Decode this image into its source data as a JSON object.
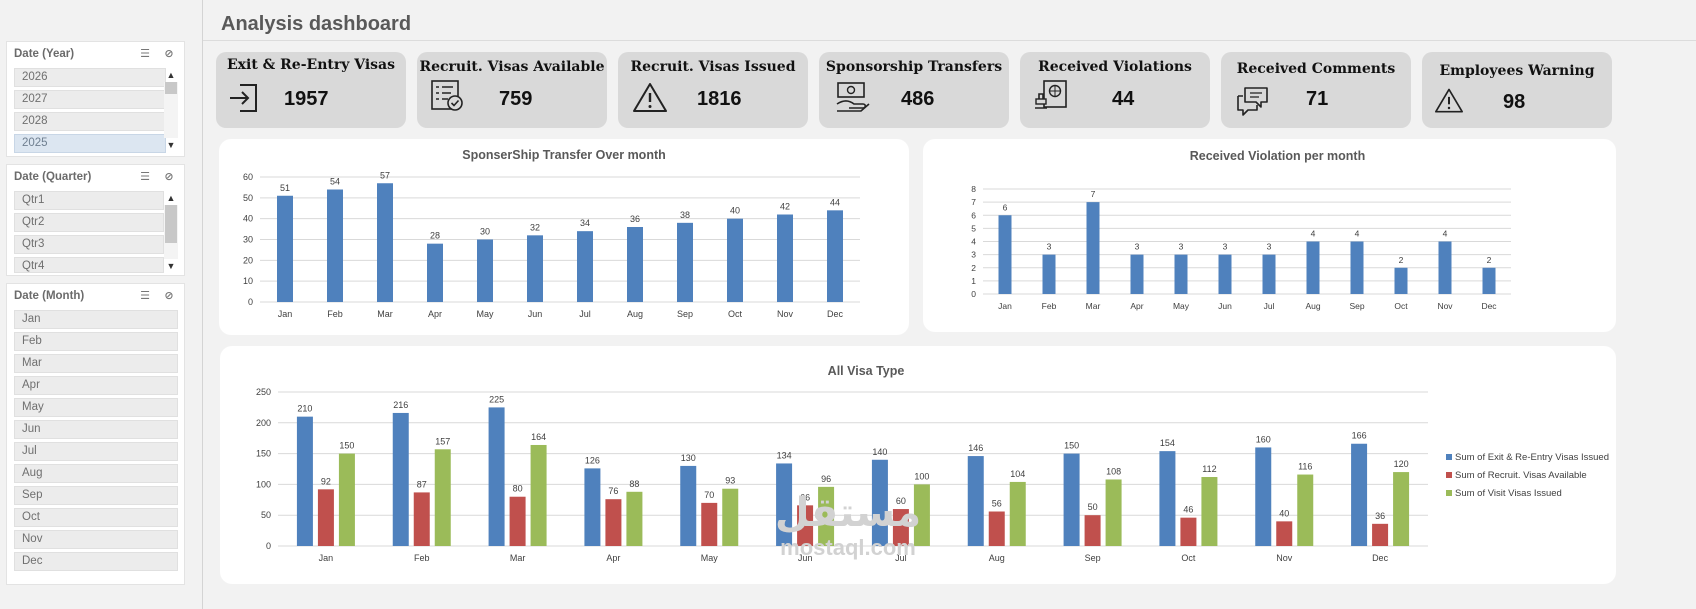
{
  "page": {
    "title": "Analysis dashboard"
  },
  "slicers": {
    "year": {
      "title": "Date (Year)",
      "items": [
        "2026",
        "2027",
        "2028",
        "2025"
      ],
      "selected": "2025"
    },
    "quarter": {
      "title": "Date (Quarter)",
      "items": [
        "Qtr1",
        "Qtr2",
        "Qtr3",
        "Qtr4"
      ]
    },
    "month": {
      "title": "Date (Month)",
      "items": [
        "Jan",
        "Feb",
        "Mar",
        "Apr",
        "May",
        "Jun",
        "Jul",
        "Aug",
        "Sep",
        "Oct",
        "Nov",
        "Dec"
      ]
    },
    "icons": {
      "multi_select": "multi-select-icon",
      "clear_filter": "clear-filter-icon"
    }
  },
  "kpis": [
    {
      "title": "Exit & Re-Entry Visas",
      "value": "1957",
      "icon": "exit-door-icon"
    },
    {
      "title": "Recruit. Visas Available",
      "value": "759",
      "icon": "checklist-icon"
    },
    {
      "title": "Recruit. Visas Issued",
      "value": "1816",
      "icon": "warning-icon"
    },
    {
      "title": "Sponsorship Transfers",
      "value": "486",
      "icon": "money-hand-icon"
    },
    {
      "title": "Received Violations",
      "value": "44",
      "icon": "passport-stamp-icon"
    },
    {
      "title": "Received Comments",
      "value": "71",
      "icon": "chat-bubbles-icon"
    },
    {
      "title": "Employees Warning",
      "value": "98",
      "icon": "warning-icon"
    }
  ],
  "chart_data": [
    {
      "type": "bar",
      "title": "SponserShip Transfer Over month",
      "categories": [
        "Jan",
        "Feb",
        "Mar",
        "Apr",
        "May",
        "Jun",
        "Jul",
        "Aug",
        "Sep",
        "Oct",
        "Nov",
        "Dec"
      ],
      "values": [
        51,
        54,
        57,
        28,
        30,
        32,
        34,
        36,
        38,
        40,
        42,
        44
      ],
      "ylim": [
        0,
        60
      ],
      "yticks": [
        0,
        10,
        20,
        30,
        40,
        50,
        60
      ],
      "grid": true,
      "color": "#4f81bd"
    },
    {
      "type": "bar",
      "title": "Received Violation per month",
      "categories": [
        "Jan",
        "Feb",
        "Mar",
        "Apr",
        "May",
        "Jun",
        "Jul",
        "Aug",
        "Sep",
        "Oct",
        "Nov",
        "Dec"
      ],
      "values": [
        6,
        3,
        7,
        3,
        3,
        3,
        3,
        4,
        4,
        2,
        4,
        2
      ],
      "ylim": [
        0,
        8
      ],
      "yticks": [
        0,
        1,
        2,
        3,
        4,
        5,
        6,
        7,
        8
      ],
      "grid": true,
      "color": "#4f81bd"
    },
    {
      "type": "bar",
      "title": "All Visa Type",
      "categories": [
        "Jan",
        "Feb",
        "Mar",
        "Apr",
        "May",
        "Jun",
        "Jul",
        "Aug",
        "Sep",
        "Oct",
        "Nov",
        "Dec"
      ],
      "series": [
        {
          "name": "Sum of Exit & Re-Entry Visas Issued",
          "color": "#4f81bd",
          "values": [
            210,
            216,
            225,
            126,
            130,
            134,
            140,
            146,
            150,
            154,
            160,
            166
          ]
        },
        {
          "name": "Sum of Recruit. Visas Available",
          "color": "#c0504d",
          "values": [
            92,
            87,
            80,
            76,
            70,
            66,
            60,
            56,
            50,
            46,
            40,
            36
          ]
        },
        {
          "name": "Sum of Visit Visas Issued",
          "color": "#9bbb59",
          "values": [
            150,
            157,
            164,
            88,
            93,
            96,
            100,
            104,
            108,
            112,
            116,
            120
          ]
        }
      ],
      "ylim": [
        0,
        250
      ],
      "yticks": [
        0,
        50,
        100,
        150,
        200,
        250
      ],
      "grid": true,
      "legend": "right"
    }
  ],
  "watermark": {
    "arabic": "مستقل",
    "latin": "mostaql.com"
  }
}
